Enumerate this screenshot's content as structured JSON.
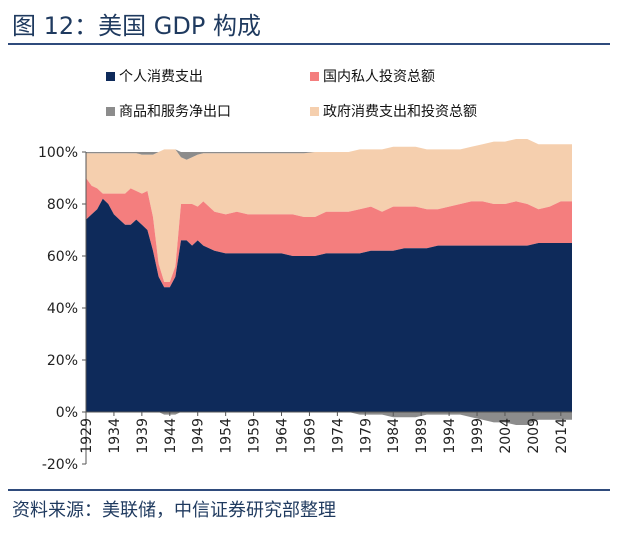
{
  "figure": {
    "title": "图 12：美国 GDP 构成",
    "source": "资料来源：美联储，中信证券研究部整理"
  },
  "chart_data": {
    "type": "area",
    "title": "美国 GDP 构成",
    "xlabel": "",
    "ylabel": "",
    "ylim": [
      -20,
      100
    ],
    "y_ticks": [
      "-20%",
      "0%",
      "20%",
      "40%",
      "60%",
      "80%",
      "100%"
    ],
    "y_tick_values": [
      -20,
      0,
      20,
      40,
      60,
      80,
      100
    ],
    "x_tick_labels": [
      "1929",
      "1934",
      "1939",
      "1944",
      "1949",
      "1954",
      "1959",
      "1964",
      "1969",
      "1974",
      "1979",
      "1984",
      "1989",
      "1994",
      "1999",
      "2004",
      "2009",
      "2014"
    ],
    "x_keyframes": [
      1929,
      1930,
      1931,
      1932,
      1933,
      1934,
      1935,
      1936,
      1937,
      1938,
      1939,
      1940,
      1941,
      1942,
      1943,
      1944,
      1945,
      1946,
      1947,
      1948,
      1949,
      1950,
      1952,
      1954,
      1956,
      1958,
      1960,
      1962,
      1964,
      1966,
      1968,
      1970,
      1972,
      1974,
      1976,
      1978,
      1980,
      1982,
      1984,
      1986,
      1988,
      1990,
      1992,
      1994,
      1996,
      1998,
      2000,
      2002,
      2004,
      2006,
      2008,
      2010,
      2012,
      2014,
      2016
    ],
    "legend": [
      "个人消费支出",
      "国内私人投资总额",
      "商品和服务净出口",
      "政府消费支出和投资总额"
    ],
    "colors": {
      "personal": "#0e2a5a",
      "investment": "#f47e7e",
      "netexports": "#8c8c8c",
      "government": "#f5cfae"
    },
    "series": [
      {
        "name": "个人消费支出",
        "key": "personal",
        "values": [
          74,
          76,
          78,
          82,
          80,
          76,
          74,
          72,
          72,
          74,
          72,
          70,
          62,
          52,
          48,
          48,
          52,
          66,
          66,
          64,
          66,
          64,
          62,
          61,
          61,
          61,
          61,
          61,
          61,
          60,
          60,
          60,
          61,
          61,
          61,
          61,
          62,
          62,
          62,
          63,
          63,
          63,
          64,
          64,
          64,
          64,
          64,
          64,
          64,
          64,
          64,
          65,
          65,
          65,
          65
        ]
      },
      {
        "name": "国内私人投资总额",
        "key": "investment",
        "values": [
          16,
          11,
          8,
          2,
          4,
          8,
          10,
          12,
          14,
          11,
          12,
          15,
          13,
          5,
          2,
          2,
          4,
          14,
          14,
          16,
          13,
          17,
          15,
          15,
          16,
          15,
          15,
          15,
          15,
          16,
          15,
          15,
          16,
          16,
          16,
          17,
          17,
          15,
          17,
          16,
          16,
          15,
          14,
          15,
          16,
          17,
          17,
          16,
          16,
          17,
          16,
          13,
          14,
          16,
          16
        ]
      },
      {
        "name": "商品和服务净出口",
        "key": "netexports",
        "values": [
          0.5,
          0.5,
          0.5,
          0.5,
          0.5,
          0.5,
          0.5,
          0.5,
          0.5,
          0.5,
          1,
          1,
          1,
          0,
          -1,
          -1,
          -1,
          2,
          3,
          2,
          1,
          0.5,
          0.5,
          0.5,
          0.5,
          0.5,
          0.5,
          0.5,
          0.5,
          0.5,
          0.5,
          0,
          0,
          0,
          0,
          -1,
          -1,
          -1,
          -2,
          -2,
          -2,
          -1,
          -1,
          -1,
          -1,
          -2,
          -3,
          -4,
          -4,
          -5,
          -5,
          -3,
          -3,
          -3,
          -3
        ]
      },
      {
        "name": "政府消费支出和投资总额",
        "key": "government",
        "values": [
          9.5,
          12.5,
          13.5,
          15.5,
          15.5,
          15.5,
          15.5,
          15.5,
          13.5,
          14.5,
          15,
          14,
          24,
          43,
          51,
          51,
          45,
          18,
          17,
          18,
          20,
          18.5,
          22.5,
          23.5,
          22.5,
          23.5,
          23.5,
          23.5,
          23.5,
          23.5,
          24.5,
          25,
          23,
          23,
          23,
          23,
          22,
          24,
          23,
          23,
          23,
          23,
          23,
          22,
          21,
          21,
          22,
          24,
          24,
          24,
          25,
          25,
          24,
          22,
          22
        ]
      }
    ]
  }
}
